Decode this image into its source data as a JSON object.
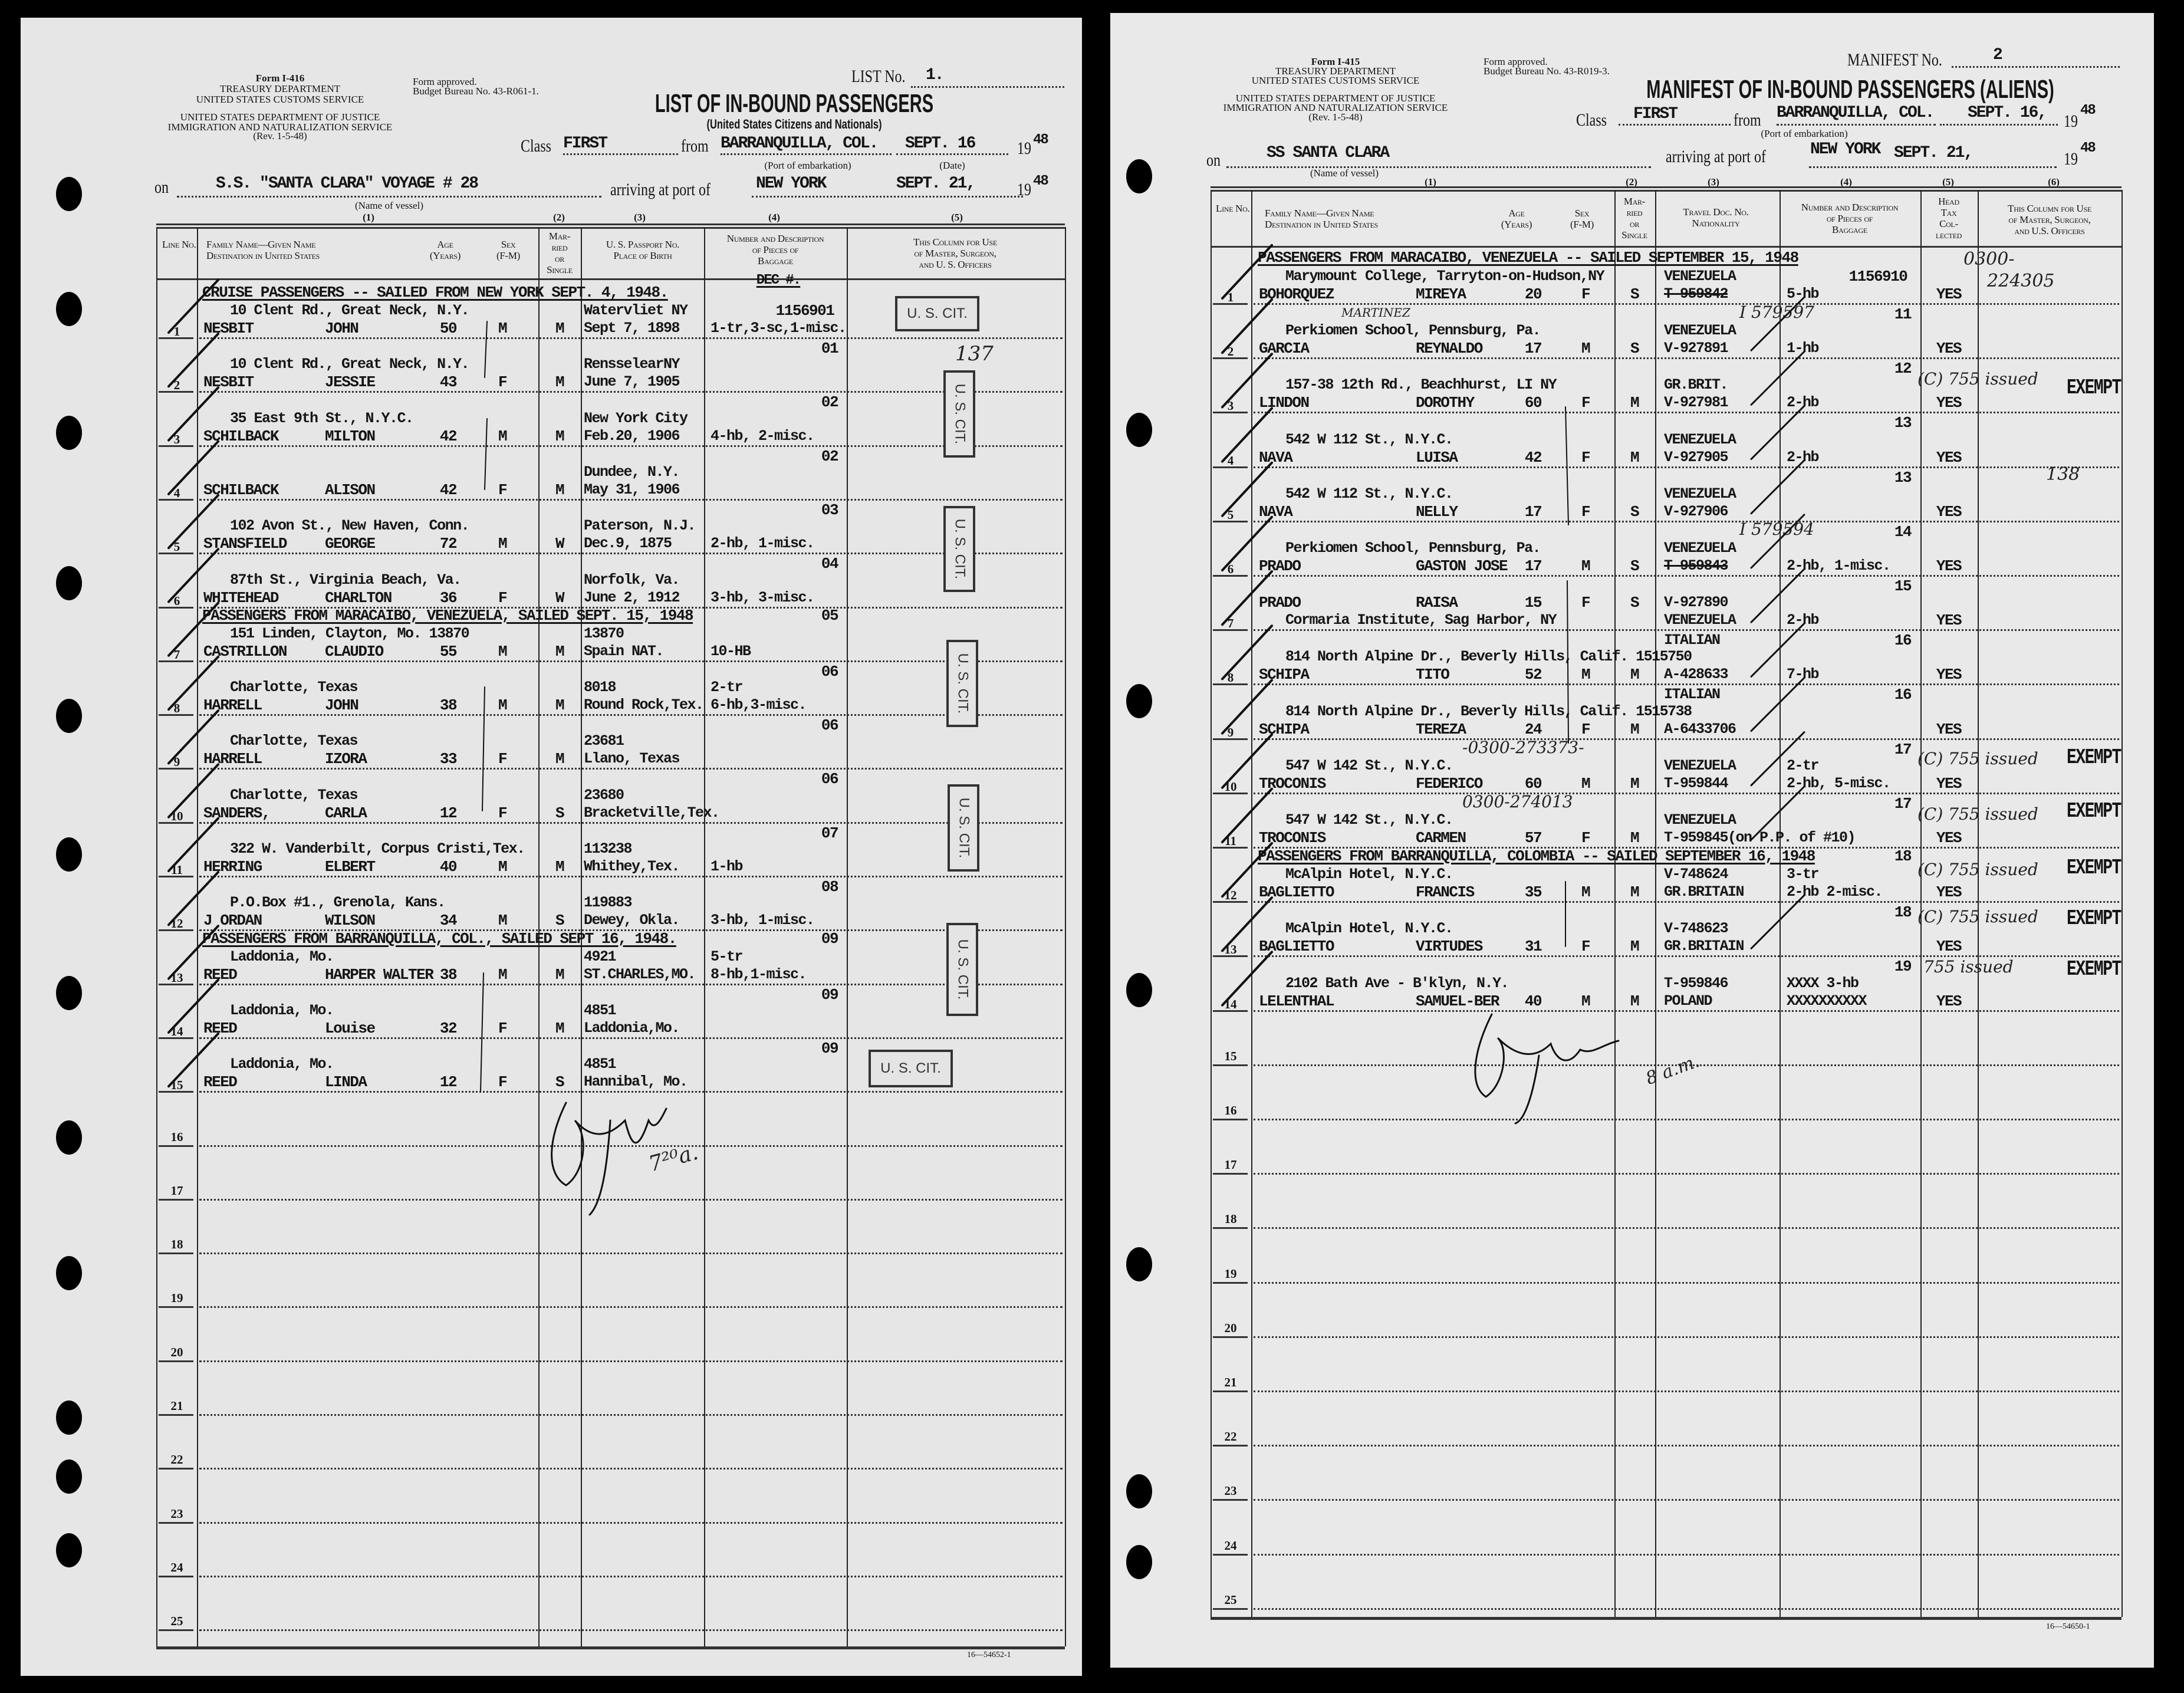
{
  "left": {
    "form_no": "Form I-416",
    "agency_lines": [
      "TREASURY DEPARTMENT",
      "UNITED STATES CUSTOMS SERVICE"
    ],
    "doj_lines": [
      "UNITED STATES DEPARTMENT OF JUSTICE",
      "IMMIGRATION AND NATURALIZATION SERVICE",
      "(Rev. 1-5-48)"
    ],
    "approval": [
      "Form approved.",
      "Budget Bureau No. 43-R061-1."
    ],
    "list_no_label": "LIST No.",
    "list_no": "1.",
    "title": "LIST OF IN-BOUND PASSENGERS",
    "subtitle": "(United States Citizens and Nationals)",
    "class_label": "Class",
    "class_value": "FIRST",
    "from_label": "from",
    "from_value": "BARRANQUILLA, COL.",
    "port_caption": "(Port of embarkation)",
    "date_value": "SEPT. 16",
    "date_caption": "(Date)",
    "year_prefix": "19",
    "year_value": "48",
    "on_label": "on",
    "vessel": "S.S. \"SANTA CLARA\"   VOYAGE # 28",
    "vessel_caption": "(Name of vessel)",
    "arriving_label": "arriving at port of",
    "arrival_port": "NEW YORK",
    "arrival_date": "SEPT. 21,",
    "arrival_year": "48",
    "column_numbers": [
      "(1)",
      "(2)",
      "(3)",
      "(4)",
      "(5)"
    ],
    "headers": {
      "line_no": "Line No.",
      "name": "Family Name—Given Name\nDestination in United States",
      "age": "Age\n(Years)",
      "sex": "Sex\n(F-M)",
      "married": "Mar-\nried\nor\nSingle",
      "passport": "U. S. Passport No.\nPlace of Birth",
      "baggage": "Number and Description\nof Pieces of\nBaggage",
      "officers": "This Column for Use\nof Master, Surgeon,\nand U. S. Officers"
    },
    "baggage_note": "DEC #.",
    "sections": [
      {
        "before_line": 1,
        "text": "CRUISE PASSENGERS -- SAILED FROM NEW YORK SEPT. 4, 1948."
      },
      {
        "before_line": 7,
        "text": "PASSENGERS FROM MARACAIBO, VENEZUELA,   SAILED SEPT. 15, 1948"
      },
      {
        "before_line": 13,
        "text": "PASSENGERS FROM BARRANQUILLA, COL.,   SAILED SEPT 16, 1948."
      }
    ],
    "rows": [
      {
        "line": "1",
        "family": "NESBIT",
        "given": "JOHN",
        "age": "50",
        "sex": "M",
        "married": "M",
        "dest": "10 Clent Rd., Great Neck, N.Y.",
        "pp_top": "Watervliet NY",
        "pp_bottom": "Sept 7, 1898",
        "bag_top": "",
        "bag_bottom": "1-tr,3-sc,1-misc.",
        "dec": "1156901"
      },
      {
        "line": "2",
        "family": "NESBIT",
        "given": "JESSIE",
        "age": "43",
        "sex": "F",
        "married": "M",
        "dest": "10 Clent Rd., Great Neck, N.Y.",
        "pp_top": "RensselearNY",
        "pp_bottom": "June 7, 1905",
        "bag_top": "",
        "bag_bottom": "",
        "dec": "01"
      },
      {
        "line": "3",
        "family": "SCHILBACK",
        "given": "MILTON",
        "age": "42",
        "sex": "M",
        "married": "M",
        "dest": "35 East 9th St., N.Y.C.",
        "pp_top": "New York City",
        "pp_bottom": "Feb.20, 1906",
        "bag_top": "",
        "bag_bottom": "4-hb, 2-misc.",
        "dec": "02"
      },
      {
        "line": "4",
        "family": "SCHILBACK",
        "given": "ALISON",
        "age": "42",
        "sex": "F",
        "married": "M",
        "dest": "",
        "pp_top": "Dundee, N.Y.",
        "pp_bottom": "May 31, 1906",
        "bag_top": "",
        "bag_bottom": "",
        "dec": "02"
      },
      {
        "line": "5",
        "family": "STANSFIELD",
        "given": "GEORGE",
        "age": "72",
        "sex": "M",
        "married": "W",
        "dest": "102 Avon St., New Haven, Conn.",
        "pp_top": "Paterson, N.J.",
        "pp_bottom": "Dec.9, 1875",
        "bag_top": "",
        "bag_bottom": "2-hb, 1-misc.",
        "dec": "03"
      },
      {
        "line": "6",
        "family": "WHITEHEAD",
        "given": "CHARLTON",
        "age": "36",
        "sex": "F",
        "married": "W",
        "dest": "87th St., Virginia Beach, Va.",
        "pp_top": "Norfolk, Va.",
        "pp_bottom": "June 2, 1912",
        "bag_top": "",
        "bag_bottom": "3-hb, 3-misc.",
        "dec": "04"
      },
      {
        "line": "7",
        "family": "CASTRILLON",
        "given": "CLAUDIO",
        "age": "55",
        "sex": "M",
        "married": "M",
        "dest": "151 Linden, Clayton, Mo.    13870",
        "pp_top": "13870",
        "pp_bottom": "Spain NAT.",
        "bag_top": "",
        "bag_bottom": "10-HB",
        "dec": "05"
      },
      {
        "line": "8",
        "family": "HARRELL",
        "given": "JOHN",
        "age": "38",
        "sex": "M",
        "married": "M",
        "dest": "Charlotte, Texas",
        "pp_top": "8018",
        "pp_bottom": "Round Rock,Tex.",
        "bag_top": "2-tr",
        "bag_bottom": "6-hb,3-misc.",
        "dec": "06"
      },
      {
        "line": "9",
        "family": "HARRELL",
        "given": "IZORA",
        "age": "33",
        "sex": "F",
        "married": "M",
        "dest": "Charlotte, Texas",
        "pp_top": "23681",
        "pp_bottom": "Llano, Texas",
        "bag_top": "",
        "bag_bottom": "",
        "dec": "06"
      },
      {
        "line": "10",
        "family": "SANDERS,",
        "given": "CARLA",
        "age": "12",
        "sex": "F",
        "married": "S",
        "dest": "Charlotte, Texas",
        "pp_top": "23680",
        "pp_bottom": "Bracketville,Tex.",
        "bag_top": "",
        "bag_bottom": "",
        "dec": "06"
      },
      {
        "line": "11",
        "family": "HERRING",
        "given": "ELBERT",
        "age": "40",
        "sex": "M",
        "married": "M",
        "dest": "322 W. Vanderbilt, Corpus Cristi,Tex.",
        "pp_top": "113238",
        "pp_bottom": "Whithey,Tex.",
        "bag_top": "",
        "bag_bottom": "1-hb",
        "dec": "07"
      },
      {
        "line": "12",
        "family": "J ORDAN",
        "given": "WILSON",
        "age": "34",
        "sex": "M",
        "married": "S",
        "dest": "P.O.Box #1., Grenola, Kans.",
        "pp_top": "119883",
        "pp_bottom": "Dewey, Okla.",
        "bag_top": "",
        "bag_bottom": "3-hb, 1-misc.",
        "dec": "08"
      },
      {
        "line": "13",
        "family": "REED",
        "given": "HARPER WALTER",
        "age": "38",
        "sex": "M",
        "married": "M",
        "dest": "Laddonia, Mo.",
        "pp_top": "4921",
        "pp_bottom": "ST.CHARLES,MO.",
        "bag_top": "5-tr",
        "bag_bottom": "8-hb,1-misc.",
        "dec": "09"
      },
      {
        "line": "14",
        "family": "REED",
        "given": "Louise",
        "age": "32",
        "sex": "F",
        "married": "M",
        "dest": "Laddonia, Mo.",
        "pp_top": "4851",
        "pp_bottom": "Laddonia,Mo.",
        "bag_top": "",
        "bag_bottom": "",
        "dec": "09"
      },
      {
        "line": "15",
        "family": "REED",
        "given": "LINDA",
        "age": "12",
        "sex": "F",
        "married": "S",
        "dest": "Laddonia, Mo.",
        "pp_top": "4851",
        "pp_bottom": "Hannibal, Mo.",
        "bag_top": "",
        "bag_bottom": "",
        "dec": "09"
      }
    ],
    "empty_lines": [
      "16",
      "17",
      "18",
      "19",
      "20",
      "21",
      "22",
      "23",
      "24",
      "25"
    ],
    "stamp_text": "U. S. CIT.",
    "handwritten": [
      "137",
      "7²⁰a."
    ],
    "footer_code": "16—54652-1"
  },
  "right": {
    "form_no": "Form I-415",
    "agency_lines": [
      "TREASURY DEPARTMENT",
      "UNITED STATES CUSTOMS SERVICE"
    ],
    "doj_lines": [
      "UNITED STATES DEPARTMENT OF JUSTICE",
      "IMMIGRATION AND NATURALIZATION SERVICE",
      "(Rev. 1-5-48)"
    ],
    "approval": [
      "Form approved.",
      "Budget Bureau No. 43-R019-3."
    ],
    "manifest_no_label": "MANIFEST No.",
    "manifest_no": "2",
    "title": "MANIFEST OF IN-BOUND PASSENGERS (ALIENS)",
    "class_label": "Class",
    "class_value": "FIRST",
    "from_label": "from",
    "from_value": "BARRANQUILLA, COL.",
    "port_caption": "(Port of embarkation)",
    "date_value": "SEPT. 16,",
    "year_prefix": "19",
    "year_value": "48",
    "on_label": "on",
    "vessel": "SS  SANTA CLARA",
    "vessel_caption": "(Name of vessel)",
    "arriving_label": "arriving at port of",
    "arrival_port": "NEW YORK",
    "arrival_date": "SEPT. 21,",
    "arrival_year": "48",
    "column_numbers": [
      "(1)",
      "(2)",
      "(3)",
      "(4)",
      "(5)",
      "(6)"
    ],
    "headers": {
      "line_no": "Line No.",
      "name": "Family Name—Given Name\nDestination in United States",
      "age": "Age\n(Years)",
      "sex": "Sex\n(F-M)",
      "married": "Mar-\nried\nor\nSingle",
      "travel_doc": "Travel Doc. No.\nNationality",
      "baggage": "Number and Description\nof Pieces of\nBaggage",
      "head_tax": "Head\nTax\nCol-\nlected",
      "officers": "This Column for Use\nof Master, Surgeon,\nand U.S. Officers"
    },
    "sections": [
      {
        "before_line": 1,
        "text": "PASSENGERS FROM MARACAIBO, VENEZUELA -- SAILED SEPTEMBER 15, 1948"
      },
      {
        "before_line": 12,
        "text": "PASSENGERS FROM BARRANQUILLA, COLOMBIA -- SAILED SEPTEMBER 16, 1948"
      }
    ],
    "rows": [
      {
        "line": "1",
        "family": "BOHORQUEZ",
        "given": "MIREYA",
        "age": "20",
        "sex": "F",
        "married": "S",
        "dest": "Marymount College, Tarryton-on-Hudson,NY",
        "doc_top": "VENEZUELA",
        "doc_bottom": "T-959842",
        "doc_struck": true,
        "bag_top": "",
        "bag_bottom": "5-hb",
        "dec": "1156910",
        "tax": "YES"
      },
      {
        "line": "2",
        "family": "GARCIA",
        "given": "REYNALDO",
        "age": "17",
        "sex": "M",
        "married": "S",
        "dest": "Perkiomen School, Pennsburg, Pa.",
        "doc_top": "VENEZUELA",
        "doc_bottom": "V-927891",
        "bag_top": "",
        "bag_bottom": "1-hb",
        "dec": "11",
        "tax": "YES"
      },
      {
        "line": "3",
        "family": "LINDON",
        "given": "DOROTHY",
        "age": "60",
        "sex": "F",
        "married": "M",
        "dest": "157-38  12th Rd., Beachhurst, LI NY",
        "doc_top": "GR.BRIT.",
        "doc_bottom": "V-927981",
        "bag_top": "",
        "bag_bottom": "2-hb",
        "dec": "12",
        "tax": "YES"
      },
      {
        "line": "4",
        "family": "NAVA",
        "given": "LUISA",
        "age": "42",
        "sex": "F",
        "married": "M",
        "dest": "542 W 112 St., N.Y.C.",
        "doc_top": "VENEZUELA",
        "doc_bottom": "V-927905",
        "bag_top": "",
        "bag_bottom": "2-hb",
        "dec": "13",
        "tax": "YES"
      },
      {
        "line": "5",
        "family": "NAVA",
        "given": "NELLY",
        "age": "17",
        "sex": "F",
        "married": "S",
        "dest": "542 W 112 St., N.Y.C.",
        "doc_top": "VENEZUELA",
        "doc_bottom": "V-927906",
        "bag_top": "",
        "bag_bottom": "",
        "dec": "13",
        "tax": "YES"
      },
      {
        "line": "6",
        "family": "PRADO",
        "given": "GASTON JOSE",
        "age": "17",
        "sex": "M",
        "married": "S",
        "dest": "Perkiomen School, Pennsburg, Pa.",
        "doc_top": "VENEZUELA",
        "doc_bottom": "T-959843",
        "doc_struck": true,
        "bag_top": "",
        "bag_bottom": "2-hb, 1-misc.",
        "dec": "14",
        "tax": "YES"
      },
      {
        "line": "7",
        "family": "PRADO",
        "given": "RAISA",
        "age": "15",
        "sex": "F",
        "married": "S",
        "dest": "Cormaria Institute, Sag Harbor, NY",
        "dest_below": true,
        "doc_top": "V-927890",
        "doc_bottom": "VENEZUELA",
        "bag_top": "",
        "bag_bottom": "2-hb",
        "dec": "15",
        "tax": "YES"
      },
      {
        "line": "8",
        "family": "SCHIPA",
        "given": "TITO",
        "age": "52",
        "sex": "M",
        "married": "M",
        "dest": "814 North Alpine Dr., Beverly Hills, Calif. 1515750",
        "doc_top": "ITALIAN",
        "doc_bottom": "A-428633",
        "bag_top": "",
        "bag_bottom": "7-hb",
        "dec": "16",
        "tax": "YES"
      },
      {
        "line": "9",
        "family": "SCHIPA",
        "given": "TEREZA",
        "age": "24",
        "sex": "F",
        "married": "M",
        "dest": "814 North Alpine Dr., Beverly Hills, Calif. 1515738",
        "doc_top": "ITALIAN",
        "doc_bottom": "A-6433706",
        "bag_top": "",
        "bag_bottom": "",
        "dec": "16",
        "tax": "YES"
      },
      {
        "line": "10",
        "family": "TROCONIS",
        "given": "FEDERICO",
        "age": "60",
        "sex": "M",
        "married": "M",
        "dest": "547 W 142 St., N.Y.C.",
        "doc_top": "VENEZUELA",
        "doc_bottom": "T-959844",
        "bag_top": "2-tr",
        "bag_bottom": "2-hb, 5-misc.",
        "dec": "17",
        "tax": "YES"
      },
      {
        "line": "11",
        "family": "TROCONIS",
        "given": "CARMEN",
        "age": "57",
        "sex": "F",
        "married": "M",
        "dest": "547 W 142 St., N.Y.C.",
        "doc_top": "VENEZUELA",
        "doc_bottom": "T-959845(on P.P. of #10)",
        "bag_top": "",
        "bag_bottom": "",
        "dec": "17",
        "tax": "YES"
      },
      {
        "line": "12",
        "family": "BAGLIETTO",
        "given": "FRANCIS",
        "age": "35",
        "sex": "M",
        "married": "M",
        "dest": "McAlpin Hotel, N.Y.C.",
        "doc_top": "V-748624",
        "doc_bottom": "GR.BRITAIN",
        "bag_top": "3-tr",
        "bag_bottom": "2-hb 2-misc.",
        "dec": "18",
        "tax": "YES"
      },
      {
        "line": "13",
        "family": "BAGLIETTO",
        "given": "VIRTUDES",
        "age": "31",
        "sex": "F",
        "married": "M",
        "dest": "McAlpin Hotel, N.Y.C.",
        "doc_top": "V-748623",
        "doc_bottom": "GR.BRITAIN",
        "bag_top": "",
        "bag_bottom": "",
        "dec": "18",
        "tax": "YES"
      },
      {
        "line": "14",
        "family": "LELENTHAL",
        "given": "SAMUEL-BER",
        "age": "40",
        "sex": "M",
        "married": "M",
        "dest": "2102 Bath Ave - B'klyn, N.Y.",
        "doc_top": "T-959846",
        "doc_bottom": "POLAND",
        "bag_top": "XXXX 3-hb",
        "bag_bottom": "XXXXXXXXXX",
        "dec": "19",
        "tax": "YES"
      }
    ],
    "empty_lines": [
      "15",
      "16",
      "17",
      "18",
      "19",
      "20",
      "21",
      "22",
      "23",
      "24",
      "25"
    ],
    "handwritten": [
      "0300-",
      "224305",
      "I 579597",
      "MARTINEZ",
      "I 579594",
      "138",
      "-0300-273373-",
      "0300-274013",
      "(C) 755 issued",
      "(C) 755 issued",
      "(C) 755 issued",
      "(C) 755 issued",
      "(C) 755 issued",
      "755 issued",
      "8 a.m."
    ],
    "exempt_text": "EXEMPT",
    "footer_code": "16—54650-1"
  }
}
